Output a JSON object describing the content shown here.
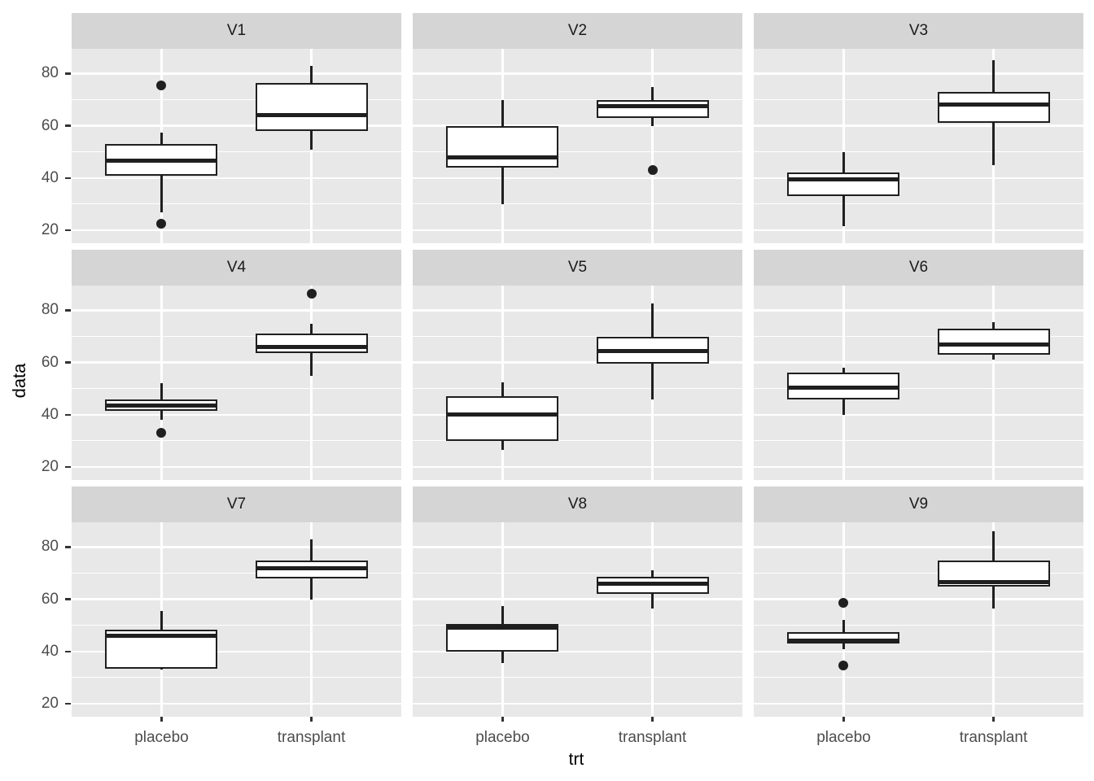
{
  "figure": {
    "xlabel": "trt",
    "ylabel": "data"
  },
  "colors": {
    "background": "#ffffff",
    "panel_bg": "#e8e8e8",
    "strip_bg": "#d5d5d5",
    "gridline": "#ffffff",
    "box_stroke": "#1f1f1f",
    "box_fill": "#ffffff",
    "tick_text": "#4d4d4d",
    "title_text": "#000000"
  },
  "chart_data": {
    "type": "boxplot",
    "faceted": true,
    "facet_grid": {
      "rows": 3,
      "cols": 3
    },
    "title": "",
    "xlabel": "trt",
    "ylabel": "data",
    "categories": [
      "placebo",
      "transplant"
    ],
    "y_ticks": [
      80,
      60,
      40,
      20
    ],
    "y_tick_labels": [
      "80",
      "60",
      "40",
      "20"
    ],
    "y_minor_ticks": [
      70,
      50,
      30
    ],
    "ylim": [
      15,
      89.5
    ],
    "grid": "white-on-gray, major and minor horizontal, major vertical at categories",
    "legend_position": "none",
    "facets": [
      {
        "label": "V1",
        "boxes": [
          {
            "category": "placebo",
            "whisker_low": 27,
            "q1": 41,
            "median": 46.5,
            "q3": 53,
            "whisker_high": 57.5,
            "outliers": [
              75.5,
              22.5
            ]
          },
          {
            "category": "transplant",
            "whisker_low": 51,
            "q1": 58,
            "median": 64,
            "q3": 76.5,
            "whisker_high": 83,
            "outliers": []
          }
        ]
      },
      {
        "label": "V2",
        "boxes": [
          {
            "category": "placebo",
            "whisker_low": 30,
            "q1": 44,
            "median": 48,
            "q3": 60,
            "whisker_high": 70,
            "outliers": []
          },
          {
            "category": "transplant",
            "whisker_low": 60,
            "q1": 63,
            "median": 67.5,
            "q3": 70,
            "whisker_high": 75,
            "outliers": [
              43
            ]
          }
        ]
      },
      {
        "label": "V3",
        "boxes": [
          {
            "category": "placebo",
            "whisker_low": 21.5,
            "q1": 33,
            "median": 39.5,
            "q3": 42,
            "whisker_high": 50,
            "outliers": []
          },
          {
            "category": "transplant",
            "whisker_low": 45,
            "q1": 61,
            "median": 68,
            "q3": 73,
            "whisker_high": 85,
            "outliers": []
          }
        ]
      },
      {
        "label": "V4",
        "boxes": [
          {
            "category": "placebo",
            "whisker_low": 38,
            "q1": 41.5,
            "median": 43.5,
            "q3": 46,
            "whisker_high": 52,
            "outliers": [
              33
            ]
          },
          {
            "category": "transplant",
            "whisker_low": 55,
            "q1": 63.5,
            "median": 66,
            "q3": 71,
            "whisker_high": 75,
            "outliers": [
              86.5
            ]
          }
        ]
      },
      {
        "label": "V5",
        "boxes": [
          {
            "category": "placebo",
            "whisker_low": 26.5,
            "q1": 30,
            "median": 40,
            "q3": 47,
            "whisker_high": 52.5,
            "outliers": []
          },
          {
            "category": "transplant",
            "whisker_low": 46,
            "q1": 59.5,
            "median": 64.5,
            "q3": 70,
            "whisker_high": 82.5,
            "outliers": []
          }
        ]
      },
      {
        "label": "V6",
        "boxes": [
          {
            "category": "placebo",
            "whisker_low": 40,
            "q1": 46,
            "median": 50.5,
            "q3": 56,
            "whisker_high": 58,
            "outliers": []
          },
          {
            "category": "transplant",
            "whisker_low": 61,
            "q1": 63,
            "median": 67,
            "q3": 73,
            "whisker_high": 75.5,
            "outliers": []
          }
        ]
      },
      {
        "label": "V7",
        "boxes": [
          {
            "category": "placebo",
            "whisker_low": 33,
            "q1": 33.5,
            "median": 46,
            "q3": 48.5,
            "whisker_high": 55.5,
            "outliers": []
          },
          {
            "category": "transplant",
            "whisker_low": 60,
            "q1": 68,
            "median": 72,
            "q3": 75,
            "whisker_high": 83,
            "outliers": []
          }
        ]
      },
      {
        "label": "V8",
        "boxes": [
          {
            "category": "placebo",
            "whisker_low": 35.5,
            "q1": 40,
            "median": 49,
            "q3": 50.5,
            "whisker_high": 57.5,
            "outliers": []
          },
          {
            "category": "transplant",
            "whisker_low": 56.5,
            "q1": 62,
            "median": 66,
            "q3": 68.5,
            "whisker_high": 71,
            "outliers": []
          }
        ]
      },
      {
        "label": "V9",
        "boxes": [
          {
            "category": "placebo",
            "whisker_low": 41,
            "q1": 43,
            "median": 44,
            "q3": 47.5,
            "whisker_high": 52,
            "outliers": [
              58.5,
              34.5
            ]
          },
          {
            "category": "transplant",
            "whisker_low": 56.5,
            "q1": 65,
            "median": 66.5,
            "q3": 75,
            "whisker_high": 86,
            "outliers": []
          }
        ]
      }
    ]
  }
}
